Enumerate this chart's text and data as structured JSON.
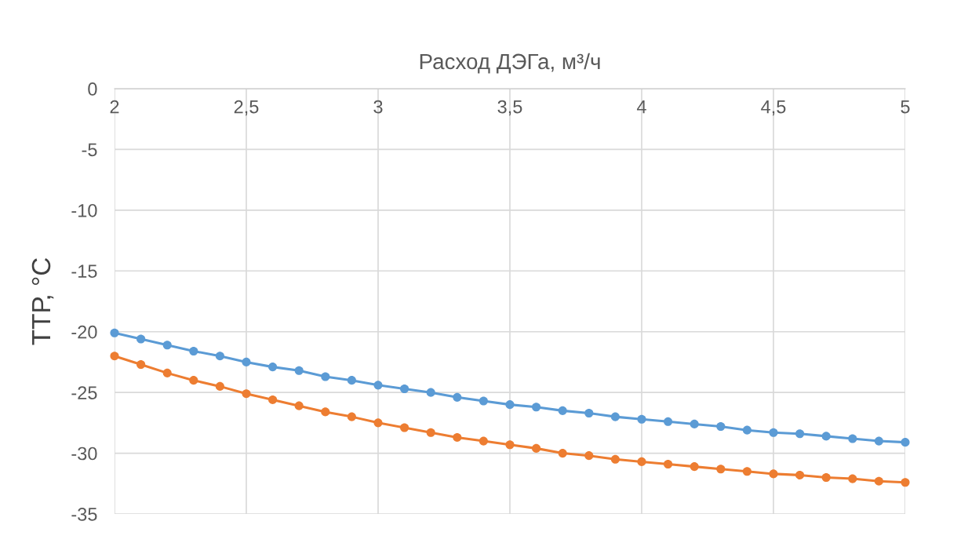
{
  "chart_data": {
    "type": "line",
    "xlabel": "Расход ДЭГа, м³/ч",
    "ylabel": "ТТР, °С",
    "x": [
      2.0,
      2.1,
      2.2,
      2.3,
      2.4,
      2.5,
      2.6,
      2.7,
      2.8,
      2.9,
      3.0,
      3.1,
      3.2,
      3.3,
      3.4,
      3.5,
      3.6,
      3.7,
      3.8,
      3.9,
      4.0,
      4.1,
      4.2,
      4.3,
      4.4,
      4.5,
      4.6,
      4.7,
      4.8,
      4.9,
      5.0
    ],
    "series": [
      {
        "color": "#5b9bd5",
        "values": [
          -20.1,
          -20.6,
          -21.1,
          -21.6,
          -22.0,
          -22.5,
          -22.9,
          -23.2,
          -23.7,
          -24.0,
          -24.4,
          -24.7,
          -25.0,
          -25.4,
          -25.7,
          -26.0,
          -26.2,
          -26.5,
          -26.7,
          -27.0,
          -27.2,
          -27.4,
          -27.6,
          -27.8,
          -28.1,
          -28.3,
          -28.4,
          -28.6,
          -28.8,
          -29.0,
          -29.1
        ]
      },
      {
        "color": "#ed7d31",
        "values": [
          -22.0,
          -22.7,
          -23.4,
          -24.0,
          -24.5,
          -25.1,
          -25.6,
          -26.1,
          -26.6,
          -27.0,
          -27.5,
          -27.9,
          -28.3,
          -28.7,
          -29.0,
          -29.3,
          -29.6,
          -30.0,
          -30.2,
          -30.5,
          -30.7,
          -30.9,
          -31.1,
          -31.3,
          -31.5,
          -31.7,
          -31.8,
          -32.0,
          -32.1,
          -32.3,
          -32.4
        ]
      }
    ],
    "xlim": [
      2,
      5
    ],
    "xticks": [
      {
        "value": 2,
        "label": "2"
      },
      {
        "value": 2.5,
        "label": "2,5"
      },
      {
        "value": 3,
        "label": "3"
      },
      {
        "value": 3.5,
        "label": "3,5"
      },
      {
        "value": 4,
        "label": "4"
      },
      {
        "value": 4.5,
        "label": "4,5"
      },
      {
        "value": 5,
        "label": "5"
      }
    ],
    "ylim": [
      -35,
      0
    ],
    "yticks": [
      -35,
      -30,
      -25,
      -20,
      -15,
      -10,
      -5,
      0
    ],
    "grid": true,
    "marker": "circle",
    "line_style": "solid"
  }
}
